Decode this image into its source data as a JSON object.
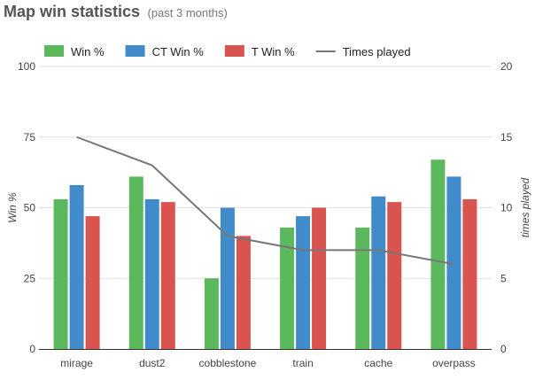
{
  "header": {
    "title": "Map win statistics",
    "subtitle": "(past 3 months)"
  },
  "colors": {
    "win": "#5cb85c",
    "ct": "#428bca",
    "t": "#d9534f",
    "times": "#777777",
    "grid": "#e0e0e0",
    "axis": "#444444"
  },
  "chart_data": {
    "type": "bar",
    "title": "Map win statistics",
    "subtitle": "(past 3 months)",
    "categories": [
      "mirage",
      "dust2",
      "cobblestone",
      "train",
      "cache",
      "overpass"
    ],
    "series": [
      {
        "name": "Win %",
        "type": "bar",
        "axis": "left",
        "color": "#5cb85c",
        "values": [
          53,
          61,
          25,
          43,
          43,
          67
        ]
      },
      {
        "name": "CT Win %",
        "type": "bar",
        "axis": "left",
        "color": "#428bca",
        "values": [
          58,
          53,
          50,
          47,
          54,
          61
        ]
      },
      {
        "name": "T Win %",
        "type": "bar",
        "axis": "left",
        "color": "#d9534f",
        "values": [
          47,
          52,
          40,
          50,
          52,
          53
        ]
      },
      {
        "name": "Times played",
        "type": "line",
        "axis": "right",
        "color": "#777777",
        "values": [
          15,
          13,
          8,
          7,
          7,
          6
        ]
      }
    ],
    "ylabel": "Win %",
    "y2label": "times played",
    "ylim": [
      0,
      100
    ],
    "y2lim": [
      0,
      20
    ],
    "yticks": [
      0,
      25,
      50,
      75,
      100
    ],
    "y2ticks": [
      0,
      5,
      10,
      15,
      20
    ],
    "grid": true,
    "legend": "top-left"
  }
}
